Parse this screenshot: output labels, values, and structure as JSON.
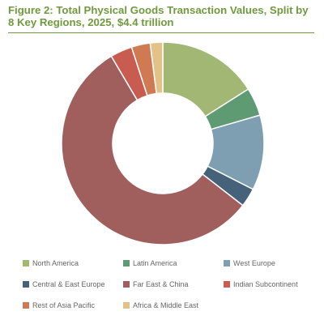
{
  "chart_data": {
    "type": "pie",
    "title": "Figure 2: Total Physical Goods Transaction Values, Split by 8 Key Regions, 2025, $4.4 trillion",
    "donut": true,
    "legend_position": "bottom",
    "slices": [
      {
        "label": "North America",
        "value": 16.0,
        "color": "#a3b775"
      },
      {
        "label": "Latin America",
        "value": 4.5,
        "color": "#5e9a72"
      },
      {
        "label": "West Europe",
        "value": 12.0,
        "color": "#7e9fb1"
      },
      {
        "label": "Central & East Europe",
        "value": 3.0,
        "color": "#46617a"
      },
      {
        "label": "Far East & China",
        "value": 56.0,
        "color": "#a05f5d"
      },
      {
        "label": "Indian Subcontinent",
        "value": 3.5,
        "color": "#c95c51"
      },
      {
        "label": "Rest of Asia Pacific",
        "value": 3.0,
        "color": "#d07a54"
      },
      {
        "label": "Africa & Middle East",
        "value": 2.0,
        "color": "#e3c28a"
      }
    ]
  }
}
